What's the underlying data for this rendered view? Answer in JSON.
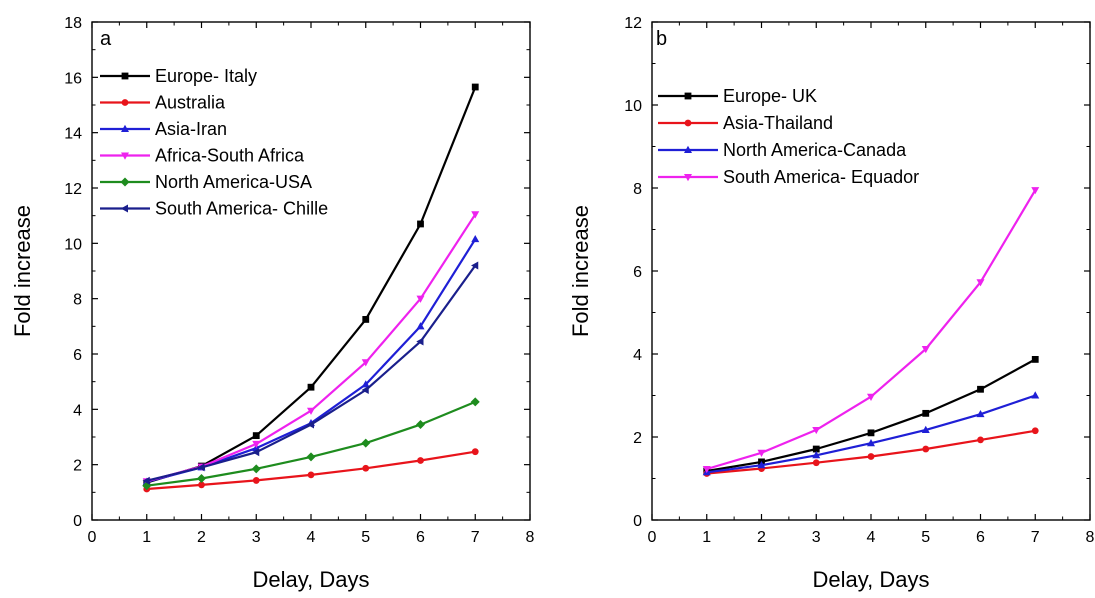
{
  "chart_data": [
    {
      "type": "line",
      "panel_label": "a",
      "xlabel": "Delay, Days",
      "ylabel": "Fold increase",
      "xlim": [
        0,
        8
      ],
      "ylim": [
        0,
        18
      ],
      "xticks": [
        0,
        1,
        2,
        3,
        4,
        5,
        6,
        7,
        8
      ],
      "yticks": [
        0,
        2,
        4,
        6,
        8,
        10,
        12,
        14,
        16,
        18
      ],
      "legend_position": "top-left",
      "grid": false,
      "x": [
        1,
        2,
        3,
        4,
        5,
        6,
        7
      ],
      "series": [
        {
          "name": "Europe- Italy",
          "color": "#000000",
          "marker": "square",
          "values": [
            1.35,
            1.95,
            3.05,
            4.8,
            7.25,
            10.7,
            15.65
          ]
        },
        {
          "name": "Australia",
          "color": "#e8141b",
          "marker": "circle",
          "values": [
            1.12,
            1.27,
            1.43,
            1.63,
            1.87,
            2.15,
            2.47
          ]
        },
        {
          "name": "Asia-Iran",
          "color": "#1f1fd6",
          "marker": "triangle-up",
          "values": [
            1.38,
            1.9,
            2.6,
            3.5,
            4.9,
            7.0,
            10.15
          ]
        },
        {
          "name": "Africa-South Africa",
          "color": "#ee22ee",
          "marker": "triangle-down",
          "values": [
            1.4,
            1.93,
            2.75,
            3.95,
            5.7,
            8.0,
            11.05
          ]
        },
        {
          "name": "North America-USA",
          "color": "#1e8c1e",
          "marker": "diamond",
          "values": [
            1.24,
            1.5,
            1.85,
            2.28,
            2.78,
            3.45,
            4.27
          ]
        },
        {
          "name": "South America- Chille",
          "color": "#1a1f8c",
          "marker": "left-triangle",
          "values": [
            1.42,
            1.9,
            2.45,
            3.45,
            4.7,
            6.45,
            9.2
          ]
        }
      ]
    },
    {
      "type": "line",
      "panel_label": "b",
      "xlabel": "Delay, Days",
      "ylabel": "Fold increase",
      "xlim": [
        0,
        8
      ],
      "ylim": [
        0,
        12
      ],
      "xticks": [
        0,
        1,
        2,
        3,
        4,
        5,
        6,
        7,
        8
      ],
      "yticks": [
        0,
        2,
        4,
        6,
        8,
        10,
        12
      ],
      "legend_position": "top-left",
      "grid": false,
      "x": [
        1,
        2,
        3,
        4,
        5,
        6,
        7
      ],
      "series": [
        {
          "name": "Europe- UK",
          "color": "#000000",
          "marker": "square",
          "values": [
            1.18,
            1.4,
            1.71,
            2.1,
            2.57,
            3.15,
            3.87
          ]
        },
        {
          "name": "Asia-Thailand",
          "color": "#e8141b",
          "marker": "circle",
          "values": [
            1.12,
            1.24,
            1.38,
            1.53,
            1.71,
            1.93,
            2.15
          ]
        },
        {
          "name": "North America-Canada",
          "color": "#1f1fd6",
          "marker": "triangle-up",
          "values": [
            1.15,
            1.32,
            1.56,
            1.85,
            2.17,
            2.55,
            3.0
          ]
        },
        {
          "name": "South America- Equador",
          "color": "#ee22ee",
          "marker": "triangle-down",
          "values": [
            1.23,
            1.62,
            2.17,
            2.97,
            4.12,
            5.73,
            7.95
          ]
        }
      ]
    }
  ]
}
